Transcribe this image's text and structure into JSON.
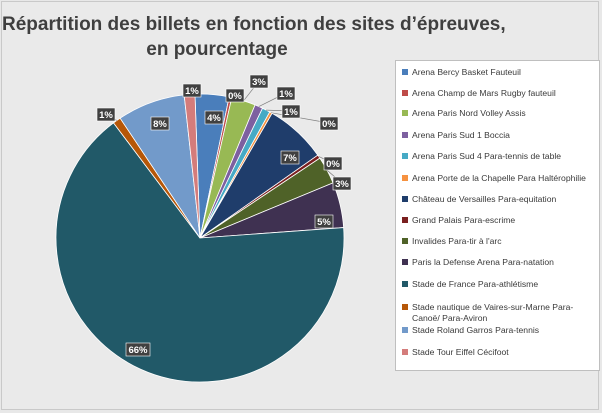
{
  "chart_data": {
    "type": "pie",
    "title_lines": [
      "Répartition des billets en fonction des sites d’épreuves,",
      "en pourcentage"
    ],
    "legend_position": "right",
    "categories": [
      "Arena Bercy Basket Fauteuil",
      "Arena Champ de Mars Rugby fauteuil",
      "Arena Paris Nord Volley Assis",
      "Arena Paris Sud 1 Boccia",
      "Arena Paris Sud 4 Para-tennis de table",
      "Arena Porte de la Chapelle Para Haltérophilie",
      "Château de Versailles Para-equitation",
      "Grand Palais Para-escrime",
      "Invalides Para-tir à l'arc",
      "Paris la Defense Arena Para-natation",
      "Stade de France Para-athlétisme",
      "Stade nautique de Vaires-sur-Marne Para-Canoë/ Para-Aviron",
      "Stade Roland Garros Para-tennis",
      "Stade Tour Eiffel Cécifoot"
    ],
    "values": [
      4,
      0,
      3,
      1,
      1,
      0,
      7,
      0,
      3,
      5,
      66,
      1,
      8,
      1
    ],
    "data_labels": [
      "4%",
      "0%",
      "3%",
      "1%",
      "1%",
      "0%",
      "7%",
      "0%",
      "3%",
      "5%",
      "66%",
      "1%",
      "8%",
      "1%"
    ],
    "colors": [
      "#4a7ebb",
      "#be4b48",
      "#98b954",
      "#7d60a0",
      "#46aac5",
      "#f69240",
      "#1f3d6b",
      "#7a1f1f",
      "#4f6228",
      "#3f3151",
      "#215968",
      "#b65708",
      "#729aca",
      "#d47c7b"
    ]
  }
}
